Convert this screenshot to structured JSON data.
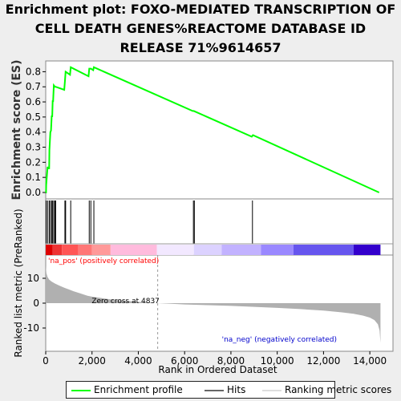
{
  "title_lines": [
    "Enrichment plot: FOXO-MEDIATED TRANSCRIPTION OF",
    "CELL DEATH GENES%REACTOME DATABASE ID",
    "RELEASE 71%9614657"
  ],
  "colors": {
    "profile": "#00ff00",
    "hits": "#000000",
    "metric_fill": "#b0b0b0",
    "pos_label": "#ff0000",
    "neg_label": "#0000cc",
    "background": "#eeeeee",
    "panel": "#ffffff"
  },
  "chart_data": {
    "type": "line",
    "ylabel_top": "Enrichment score (ES)",
    "ylabel_bottom": "Ranked list metric (PreRanked)",
    "xlabel": "Rank in Ordered Dataset",
    "xlim": [
      0,
      15000
    ],
    "x_ticks": [
      0,
      2000,
      4000,
      6000,
      8000,
      10000,
      12000,
      14000
    ],
    "x_tick_labels": [
      "0",
      "2,000",
      "4,000",
      "6,000",
      "8,000",
      "10,000",
      "12,000",
      "14,000"
    ],
    "es_ylim": [
      0,
      0.85
    ],
    "es_ticks": [
      0.0,
      0.1,
      0.2,
      0.3,
      0.4,
      0.5,
      0.6,
      0.7,
      0.8
    ],
    "es_tick_labels": [
      "0.0",
      "0.1",
      "0.2",
      "0.3",
      "0.4",
      "0.5",
      "0.6",
      "0.7",
      "0.8"
    ],
    "es_profile": {
      "x": [
        0,
        15,
        20,
        80,
        100,
        150,
        160,
        200,
        230,
        260,
        280,
        300,
        320,
        350,
        400,
        430,
        800,
        830,
        860,
        1050,
        1080,
        1850,
        1880,
        1950,
        2050,
        2080,
        6350,
        6400,
        8900,
        8950,
        14400
      ],
      "y": [
        0.0,
        0.0,
        0.05,
        0.17,
        0.16,
        0.16,
        0.28,
        0.4,
        0.41,
        0.51,
        0.5,
        0.61,
        0.6,
        0.71,
        0.7,
        0.7,
        0.68,
        0.74,
        0.8,
        0.78,
        0.83,
        0.77,
        0.82,
        0.82,
        0.81,
        0.83,
        0.54,
        0.54,
        0.37,
        0.38,
        0.0
      ]
    },
    "hits": [
      20,
      80,
      150,
      200,
      260,
      300,
      350,
      400,
      430,
      830,
      860,
      1080,
      1880,
      1950,
      2080,
      6380,
      6420,
      8930
    ],
    "metric_ylim": [
      -15,
      15
    ],
    "metric_ticks": [
      10,
      0,
      -10
    ],
    "metric_tick_labels": [
      "10",
      "0",
      "-10"
    ],
    "metric_points": {
      "x": [
        0,
        30,
        80,
        150,
        250,
        400,
        600,
        800,
        1000,
        1200,
        1500,
        1800,
        2000,
        2500,
        3000,
        3500,
        4000,
        4500,
        4837,
        5500,
        6000,
        7000,
        8000,
        9000,
        10000,
        11000,
        12000,
        12800,
        13300,
        13700,
        14000,
        14200,
        14350,
        14420,
        14460
      ],
      "y": [
        15,
        12,
        10.5,
        9.5,
        8.7,
        7.9,
        7.0,
        6.2,
        5.5,
        4.8,
        3.9,
        3.0,
        2.6,
        1.9,
        1.3,
        0.9,
        0.5,
        0.2,
        0,
        -0.3,
        -0.5,
        -0.8,
        -1.1,
        -1.5,
        -1.9,
        -2.4,
        -3.0,
        -3.7,
        -4.3,
        -5.0,
        -5.8,
        -6.8,
        -8.5,
        -11,
        -16
      ]
    },
    "zero_cross_rank": 4837,
    "zero_cross_label": "Zero cross at 4837",
    "pos_label": "'na_pos' (positively correlated)",
    "neg_label": "'na_neg' (negatively correlated)",
    "color_bar": {
      "bounds": [
        0,
        300,
        700,
        1400,
        2000,
        2800,
        4800,
        6400,
        7600,
        9300,
        10700,
        13300,
        14460
      ],
      "colors": [
        "#dd0000",
        "#ee3333",
        "#ff5555",
        "#ff7777",
        "#ff9999",
        "#ffbbdd",
        "#f2e8ff",
        "#dcd2ff",
        "#c2b2ff",
        "#9a88ff",
        "#6655ee",
        "#3300cc"
      ]
    },
    "legend": [
      "Enrichment profile",
      "Hits",
      "Ranking metric scores"
    ]
  }
}
